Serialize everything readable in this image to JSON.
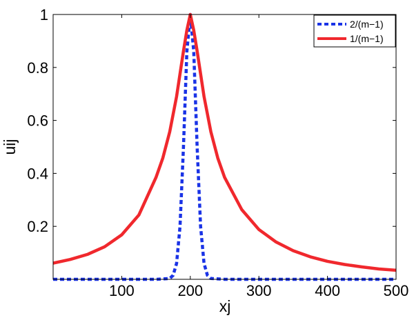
{
  "chart_data": {
    "type": "line",
    "xlabel": "xj",
    "ylabel": "uij",
    "xlim": [
      0,
      500
    ],
    "ylim": [
      0,
      1
    ],
    "x_ticks": [
      100,
      200,
      300,
      400,
      500
    ],
    "y_ticks": [
      0.2,
      0.4,
      0.6,
      0.8,
      1
    ],
    "x_tick_labels": [
      "100",
      "200",
      "300",
      "400",
      "500"
    ],
    "y_tick_labels": [
      "0.2",
      "0.4",
      "0.6",
      "0.8",
      "1"
    ],
    "grid": false,
    "legend_position": "top-right",
    "series": [
      {
        "name": "2/(m−1)",
        "color": "#1a33e6",
        "style": "dashed",
        "x": [
          0,
          150,
          170,
          175,
          180,
          185,
          190,
          195,
          200,
          205,
          210,
          215,
          220,
          225,
          230,
          250,
          500
        ],
        "y": [
          0,
          0,
          0.003,
          0.015,
          0.06,
          0.2,
          0.5,
          0.86,
          1.0,
          0.86,
          0.5,
          0.2,
          0.06,
          0.015,
          0.003,
          0,
          0
        ]
      },
      {
        "name": "1/(m−1)",
        "color": "#f0282d",
        "style": "solid",
        "x": [
          0,
          25,
          50,
          75,
          100,
          125,
          150,
          160,
          170,
          180,
          190,
          195,
          200,
          205,
          210,
          220,
          230,
          240,
          250,
          275,
          300,
          325,
          350,
          375,
          400,
          425,
          450,
          475,
          500
        ],
        "y": [
          0.061,
          0.075,
          0.094,
          0.123,
          0.168,
          0.243,
          0.385,
          0.458,
          0.557,
          0.69,
          0.862,
          0.94,
          1.0,
          0.94,
          0.862,
          0.69,
          0.557,
          0.458,
          0.385,
          0.263,
          0.188,
          0.141,
          0.108,
          0.085,
          0.068,
          0.056,
          0.047,
          0.039,
          0.034
        ]
      }
    ]
  }
}
